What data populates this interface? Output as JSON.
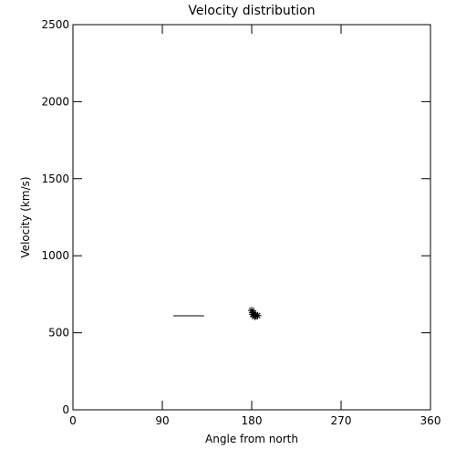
{
  "chart_data": {
    "type": "scatter",
    "title": "Velocity distribution",
    "x_label": "Angle from north",
    "y_label": "Velocity (km/s)",
    "xlim": [
      0,
      360
    ],
    "xticks": [
      0,
      90,
      180,
      270,
      360
    ],
    "ylim": [
      0,
      2500
    ],
    "yticks": [
      0,
      500,
      1000,
      1500,
      2000,
      2500
    ],
    "series": [
      {
        "style": "line",
        "color": "#000000",
        "x": [
          101,
          132
        ],
        "values": [
          610,
          610
        ]
      },
      {
        "style": "asterisk",
        "color": "#000000",
        "x": [
          180,
          182,
          184,
          186,
          181,
          183
        ],
        "values": [
          645,
          628,
          612,
          612,
          618,
          605
        ]
      }
    ]
  }
}
